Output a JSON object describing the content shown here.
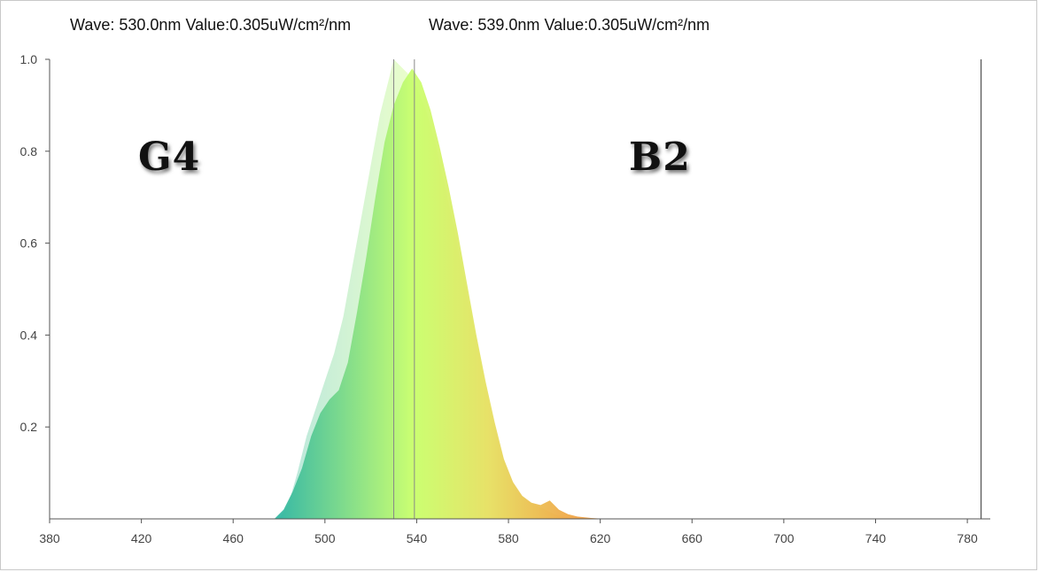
{
  "readouts": [
    {
      "wave_label": "Wave:",
      "wave_value": "530.0nm",
      "value_label": "Value:",
      "value_value": "0.305uW/cm²/nm"
    },
    {
      "wave_label": "Wave:",
      "wave_value": "539.0nm",
      "value_label": "Value:",
      "value_value": "0.305uW/cm²/nm"
    }
  ],
  "labels": {
    "left": "G4",
    "right": "B2"
  },
  "chart_data": {
    "type": "area",
    "title": "",
    "xlabel": "",
    "ylabel": "",
    "xlim": [
      380,
      790
    ],
    "ylim": [
      0,
      1.0
    ],
    "x_ticks": [
      380,
      420,
      460,
      500,
      540,
      580,
      620,
      660,
      700,
      740,
      780
    ],
    "y_ticks": [
      0.2,
      0.4,
      0.6,
      0.8,
      1.0
    ],
    "y_tick_labels": [
      "0.2",
      "0.4",
      "0.6",
      "0.8",
      "1.0"
    ],
    "grid": false,
    "cursors": [
      530.0,
      539.0,
      786
    ],
    "series": [
      {
        "x": [
          480,
          484,
          488,
          492,
          496,
          500,
          504,
          508,
          512,
          516,
          520,
          524,
          528,
          530,
          532,
          536,
          540,
          544,
          548,
          552,
          556,
          560,
          564,
          568,
          572,
          576,
          580,
          584,
          588,
          592,
          596,
          600,
          604,
          608
        ],
        "values": [
          0.0,
          0.03,
          0.1,
          0.18,
          0.24,
          0.3,
          0.36,
          0.44,
          0.55,
          0.66,
          0.77,
          0.88,
          0.96,
          1.0,
          0.99,
          0.97,
          0.94,
          0.89,
          0.82,
          0.73,
          0.64,
          0.54,
          0.44,
          0.34,
          0.24,
          0.16,
          0.1,
          0.06,
          0.04,
          0.03,
          0.02,
          0.01,
          0.005,
          0.0
        ]
      },
      {
        "x": [
          478,
          482,
          486,
          490,
          494,
          498,
          502,
          506,
          510,
          514,
          518,
          522,
          526,
          530,
          534,
          538,
          542,
          546,
          550,
          554,
          558,
          562,
          566,
          570,
          574,
          578,
          582,
          586,
          590,
          594,
          598,
          602,
          606,
          610,
          616,
          622
        ],
        "values": [
          0.0,
          0.02,
          0.06,
          0.11,
          0.18,
          0.23,
          0.26,
          0.28,
          0.34,
          0.45,
          0.57,
          0.7,
          0.82,
          0.9,
          0.95,
          0.98,
          0.95,
          0.89,
          0.81,
          0.72,
          0.62,
          0.51,
          0.4,
          0.3,
          0.21,
          0.13,
          0.08,
          0.05,
          0.035,
          0.03,
          0.04,
          0.02,
          0.01,
          0.005,
          0.002,
          0.0
        ]
      }
    ]
  },
  "colors": {
    "frame_border": "#c9c9c9",
    "axis": "#555555",
    "cursor": "#888888",
    "spectrum_left": "#2fb6a0",
    "spectrum_mid": "#c8ff6a",
    "spectrum_right": "#f0a040",
    "ghost_fill": "#c8efcf"
  }
}
